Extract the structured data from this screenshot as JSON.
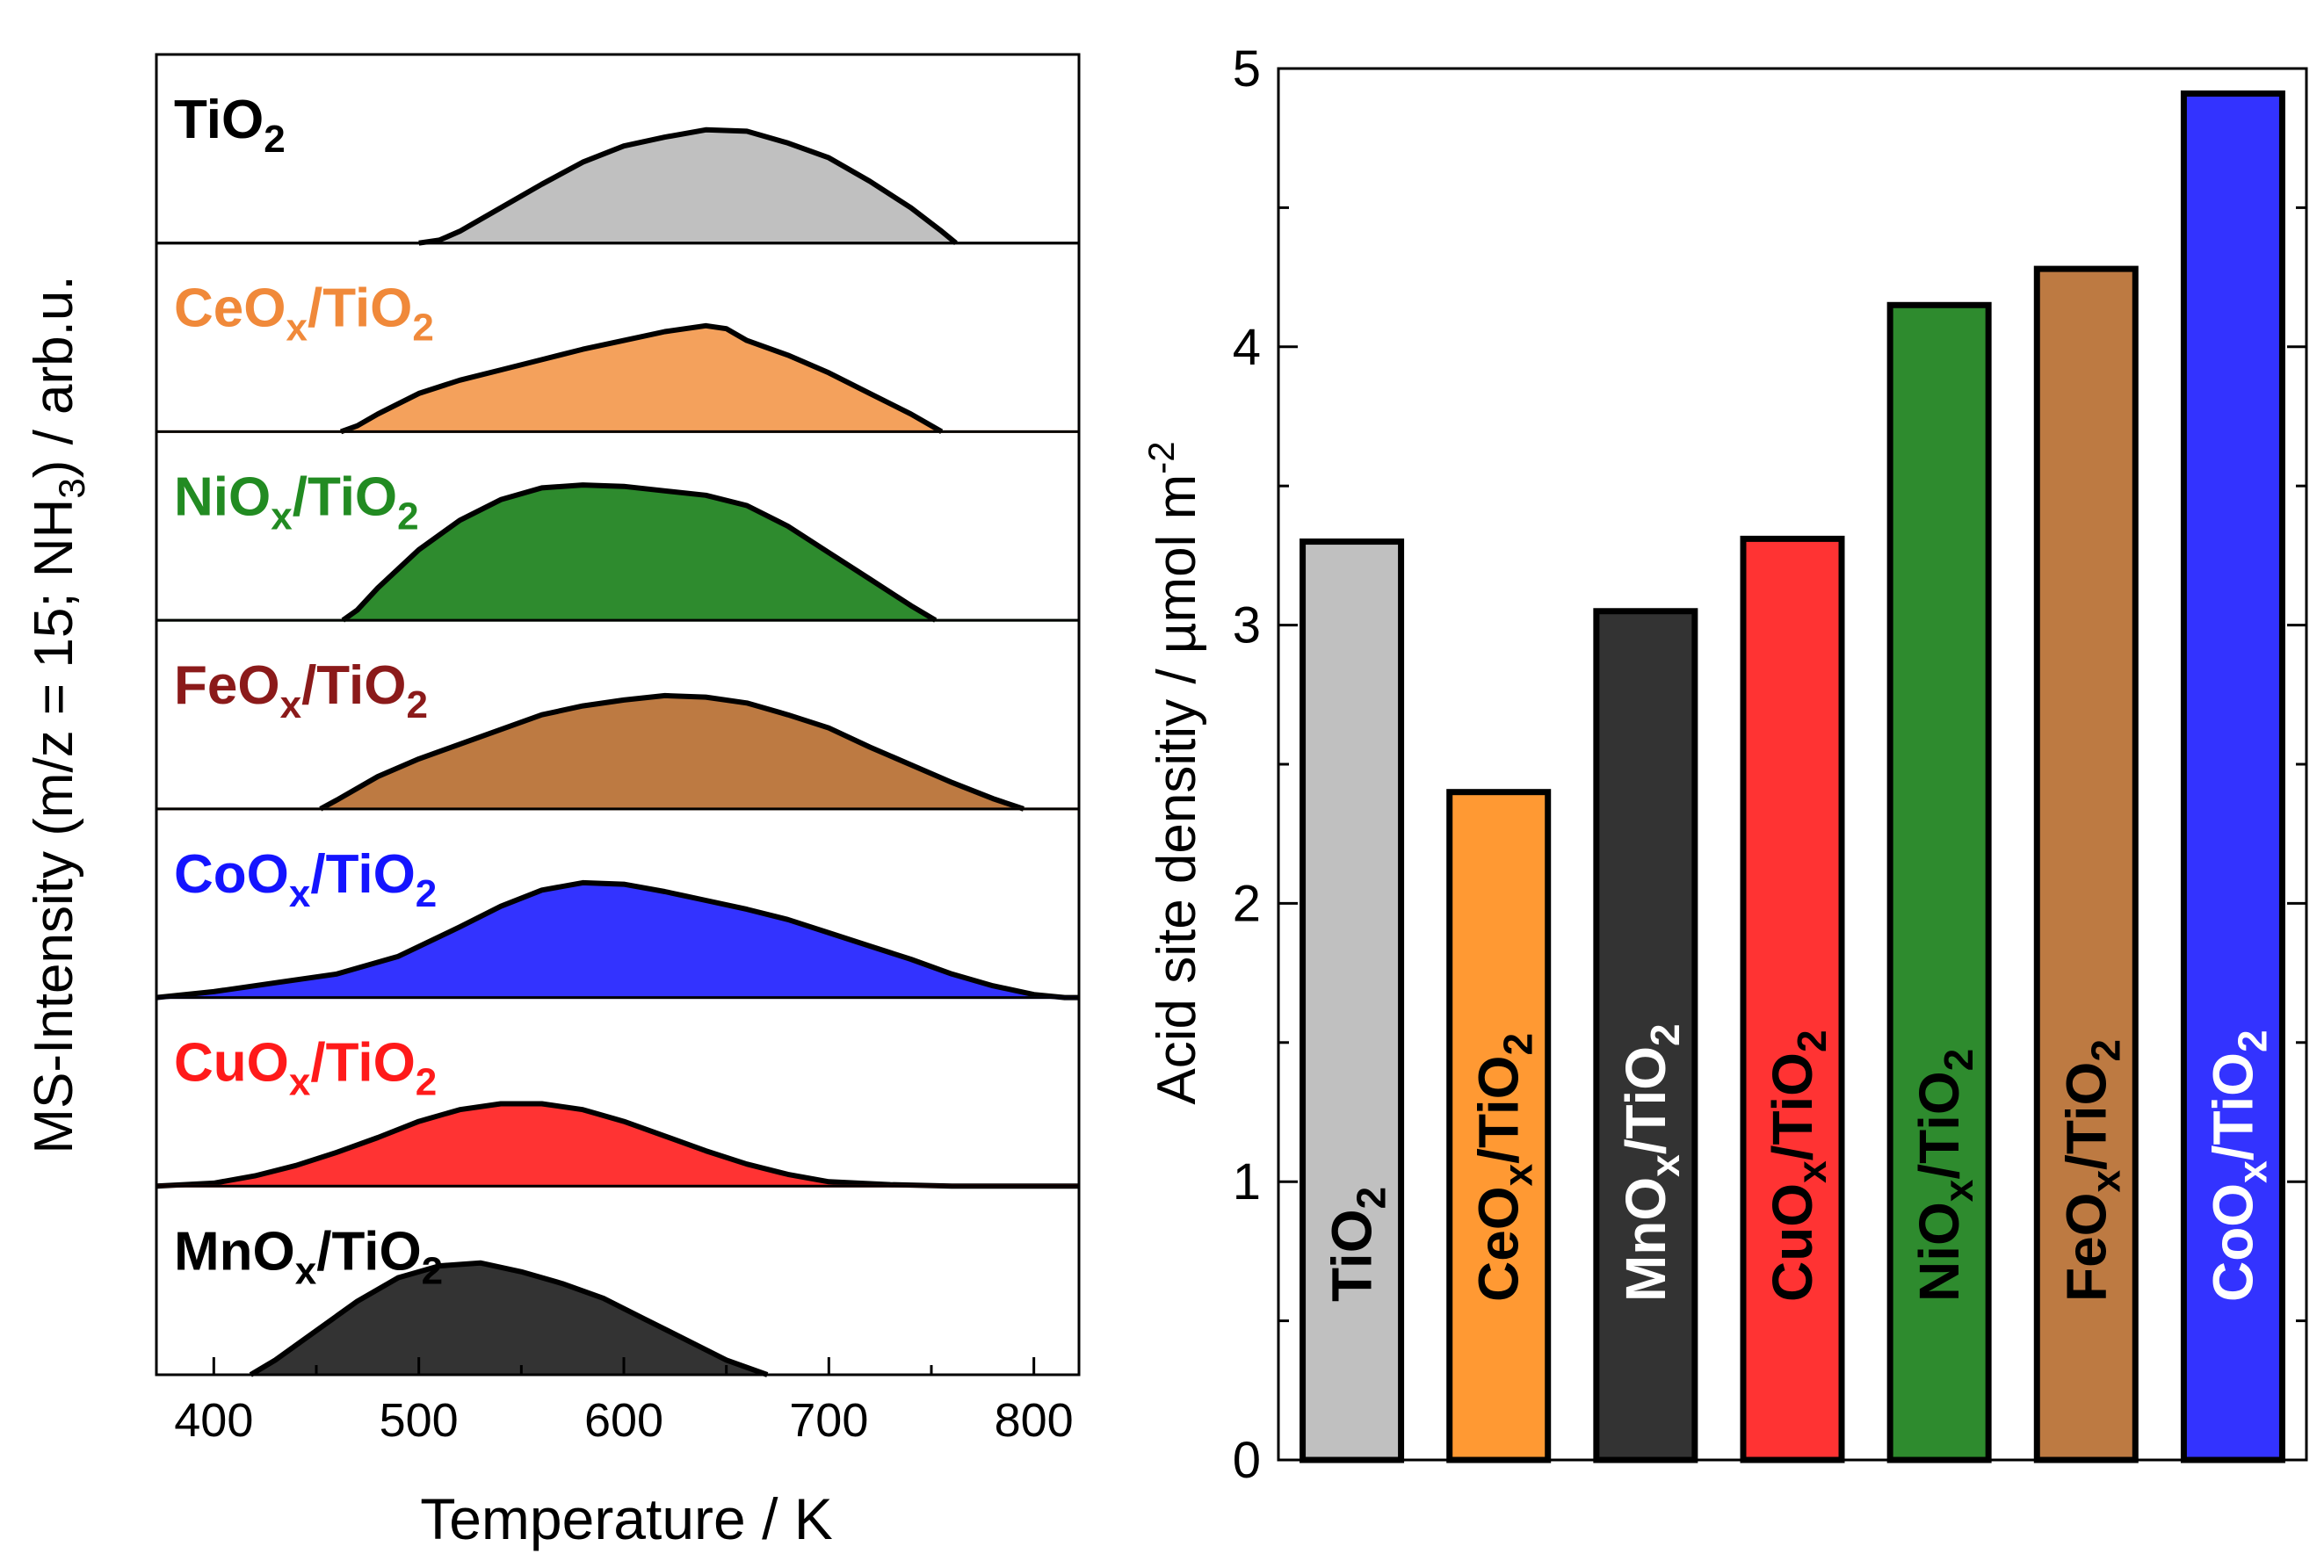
{
  "chart_data": [
    {
      "type": "area",
      "title": "",
      "xlabel": "Temperature / K",
      "ylabel": "MS-Intensity (m/z = 15; NH3) / arb.u.",
      "ylabel_parts": [
        "MS-Intensity (m/z = 15; NH",
        "3",
        ") / arb.u."
      ],
      "xlim": [
        372,
        822
      ],
      "x_ticks": [
        400,
        500,
        600,
        700,
        800
      ],
      "x_tick_labels": [
        "400",
        "500",
        "600",
        "700",
        "800"
      ],
      "panels": [
        {
          "name": "TiO2",
          "label_main": "TiO",
          "label_sub": "2",
          "label_tail": "",
          "label_end": "",
          "color": "#000000",
          "fill": "#C0C0C0",
          "x": [
            500,
            510,
            520,
            540,
            560,
            580,
            600,
            620,
            640,
            660,
            680,
            700,
            720,
            740,
            755,
            762
          ],
          "y": [
            0,
            0.02,
            0.08,
            0.24,
            0.4,
            0.55,
            0.66,
            0.72,
            0.77,
            0.76,
            0.68,
            0.58,
            0.42,
            0.24,
            0.08,
            0
          ]
        },
        {
          "name": "CeOx/TiO2",
          "label_main": "CeO",
          "label_sub": "x",
          "label_tail": "/TiO",
          "label_end": "2",
          "color": "#F0893A",
          "fill": "#F4A15C",
          "x": [
            462,
            470,
            480,
            500,
            520,
            540,
            560,
            580,
            600,
            620,
            640,
            650,
            660,
            680,
            700,
            720,
            740,
            755
          ],
          "y": [
            0,
            0.04,
            0.12,
            0.26,
            0.35,
            0.42,
            0.49,
            0.56,
            0.62,
            0.68,
            0.72,
            0.7,
            0.62,
            0.52,
            0.4,
            0.26,
            0.12,
            0
          ]
        },
        {
          "name": "NiOx/TiO2",
          "label_main": "NiO",
          "label_sub": "x",
          "label_tail": "/TiO",
          "label_end": "2",
          "color": "#228B22",
          "fill": "#2E8B2E",
          "x": [
            463,
            470,
            480,
            500,
            520,
            540,
            560,
            580,
            600,
            620,
            640,
            660,
            680,
            700,
            720,
            740,
            752
          ],
          "y": [
            0,
            0.07,
            0.22,
            0.48,
            0.68,
            0.82,
            0.9,
            0.92,
            0.91,
            0.88,
            0.85,
            0.78,
            0.64,
            0.46,
            0.28,
            0.1,
            0
          ]
        },
        {
          "name": "FeOx/TiO2",
          "label_main": "FeO",
          "label_sub": "x",
          "label_tail": "/TiO",
          "label_end": "2",
          "color": "#8B1A1A",
          "fill": "#BD7A42",
          "x": [
            452,
            460,
            480,
            500,
            520,
            540,
            560,
            580,
            600,
            620,
            640,
            660,
            680,
            700,
            720,
            740,
            760,
            780,
            795
          ],
          "y": [
            0,
            0.06,
            0.22,
            0.34,
            0.44,
            0.54,
            0.64,
            0.7,
            0.74,
            0.77,
            0.76,
            0.72,
            0.64,
            0.55,
            0.42,
            0.3,
            0.18,
            0.07,
            0
          ]
        },
        {
          "name": "CoOx/TiO2",
          "label_main": "CoO",
          "label_sub": "x",
          "label_tail": "/TiO",
          "label_end": "2",
          "color": "#1414FF",
          "fill": "#3333FF",
          "x": [
            372,
            400,
            430,
            460,
            490,
            520,
            540,
            560,
            580,
            600,
            620,
            640,
            660,
            680,
            700,
            720,
            740,
            760,
            780,
            800,
            815,
            822
          ],
          "y": [
            0,
            0.04,
            0.1,
            0.16,
            0.28,
            0.48,
            0.62,
            0.73,
            0.78,
            0.77,
            0.72,
            0.66,
            0.6,
            0.53,
            0.44,
            0.35,
            0.26,
            0.16,
            0.08,
            0.02,
            0,
            0
          ]
        },
        {
          "name": "CuOx/TiO2",
          "label_main": "CuO",
          "label_sub": "x",
          "label_tail": "/TiO",
          "label_end": "2",
          "color": "#FF1A1A",
          "fill": "#FF3333",
          "x": [
            372,
            400,
            420,
            440,
            460,
            480,
            500,
            520,
            540,
            560,
            580,
            600,
            620,
            640,
            660,
            680,
            700,
            730,
            760,
            822
          ],
          "y": [
            0,
            0.02,
            0.07,
            0.14,
            0.23,
            0.33,
            0.44,
            0.52,
            0.56,
            0.56,
            0.52,
            0.44,
            0.34,
            0.24,
            0.15,
            0.08,
            0.03,
            0.01,
            0,
            0
          ]
        },
        {
          "name": "MnOx/TiO2",
          "label_main": "MnO",
          "label_sub": "x",
          "label_tail": "/TiO",
          "label_end": "2",
          "color": "#000000",
          "fill": "#333333",
          "x": [
            418,
            430,
            450,
            470,
            490,
            510,
            530,
            550,
            570,
            590,
            610,
            630,
            650,
            670
          ],
          "y": [
            0,
            0.1,
            0.3,
            0.5,
            0.66,
            0.74,
            0.76,
            0.7,
            0.62,
            0.52,
            0.38,
            0.24,
            0.1,
            0
          ]
        }
      ]
    },
    {
      "type": "bar",
      "title": "",
      "xlabel": "",
      "ylabel": "Acid site densitiy / µmol m-2",
      "ylabel_main": "Acid site densitiy / µmol m",
      "ylabel_sup": "-2",
      "ylim": [
        0,
        5
      ],
      "y_ticks": [
        0,
        1,
        2,
        3,
        4,
        5
      ],
      "y_tick_labels": [
        "0",
        "1",
        "2",
        "3",
        "4",
        "5"
      ],
      "categories": [
        "TiO2",
        "CeOx/TiO2",
        "MnOx/TiO2",
        "CuOx/TiO2",
        "NiOx/TiO2",
        "FeOx/TiO2",
        "CoOx/TiO2"
      ],
      "values": [
        3.3,
        2.4,
        3.05,
        3.31,
        4.15,
        4.28,
        4.91
      ],
      "bars": [
        {
          "label_main": "TiO",
          "label_sub": "2",
          "label_tail": "",
          "label_end": "",
          "fill": "#C0C0C0",
          "text_color": "#000000"
        },
        {
          "label_main": "CeO",
          "label_sub": "x",
          "label_tail": "/TiO",
          "label_end": "2",
          "fill": "#FF9933",
          "text_color": "#000000"
        },
        {
          "label_main": "MnO",
          "label_sub": "x",
          "label_tail": "/TiO",
          "label_end": "2",
          "fill": "#333333",
          "text_color": "#FFFFFF"
        },
        {
          "label_main": "CuO",
          "label_sub": "x",
          "label_tail": "/TiO",
          "label_end": "2",
          "fill": "#FF3333",
          "text_color": "#000000"
        },
        {
          "label_main": "NiO",
          "label_sub": "x",
          "label_tail": "/TiO",
          "label_end": "2",
          "fill": "#2E8B2E",
          "text_color": "#000000"
        },
        {
          "label_main": "FeO",
          "label_sub": "x",
          "label_tail": "/TiO",
          "label_end": "2",
          "fill": "#BD7A42",
          "text_color": "#000000"
        },
        {
          "label_main": "CoO",
          "label_sub": "x",
          "label_tail": "/TiO",
          "label_end": "2",
          "fill": "#3333FF",
          "text_color": "#FFFFFF"
        }
      ]
    }
  ]
}
